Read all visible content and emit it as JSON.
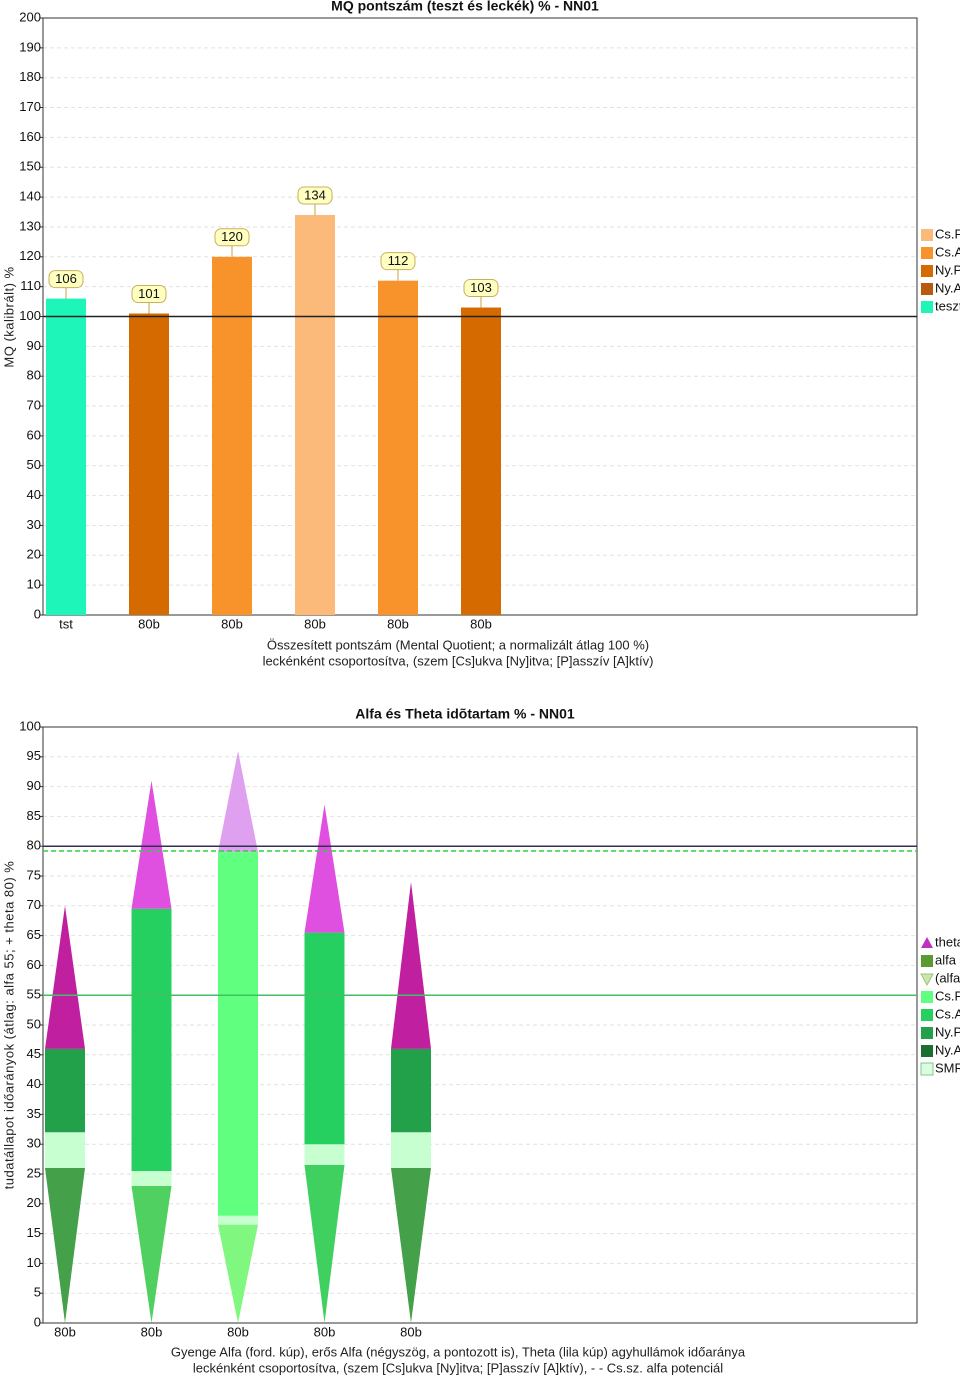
{
  "chart_data": [
    {
      "type": "bar",
      "title": "MQ pontszám (teszt és leckék) % - NN01",
      "y_label": "MQ (kalibrált) %",
      "x_label": [
        "Összesített pontszám (Mental Quotient; a normalizált átlag 100 %)",
        "leckénként csoportosítva, (szem [Cs]ukva [Ny]itva; [P]asszív [A]ktív)"
      ],
      "categories": [
        "tst",
        "80b",
        "80b",
        "80b",
        "80b",
        "80b"
      ],
      "values": [
        106,
        101,
        120,
        134,
        112,
        103
      ],
      "colors": [
        "#1ef5b8",
        "#d46a00",
        "#f7932a",
        "#fbb97a",
        "#f7932a",
        "#d46a00"
      ],
      "ylim": [
        0,
        200
      ],
      "yticks": [
        0,
        10,
        20,
        30,
        40,
        50,
        60,
        70,
        80,
        90,
        100,
        110,
        120,
        130,
        140,
        150,
        160,
        170,
        180,
        190,
        200
      ],
      "grid": true,
      "reference_line": 100,
      "legend_position": "right",
      "legend": [
        {
          "name": "Cs.P",
          "color": "#fbb97a"
        },
        {
          "name": "Cs.A",
          "color": "#f7932a"
        },
        {
          "name": "Ny.P",
          "color": "#d46a00"
        },
        {
          "name": "Ny.A",
          "color": "#b85a10"
        },
        {
          "name": "teszt",
          "color": "#1ef5b8"
        }
      ]
    },
    {
      "type": "stacked-cone",
      "title": "Alfa és Theta idõtartam % - NN01",
      "y_label": "tudatállapot időarányok (átlag: alfa 55; + theta 80)  %",
      "x_label": [
        "Gyenge Alfa (ford. kúp), erős Alfa (négyszög, a pontozott is), Theta (lila kúp) agyhullámok időaránya",
        "leckénként csoportosítva, (szem [Cs]ukva [Ny]itva; [P]asszív [A]ktív), - - Cs.sz. alfa potenciál"
      ],
      "categories": [
        "80b",
        "80b",
        "80b",
        "80b",
        "80b"
      ],
      "ylim": [
        0,
        100
      ],
      "yticks": [
        0,
        5,
        10,
        15,
        20,
        25,
        30,
        35,
        40,
        45,
        50,
        55,
        60,
        65,
        70,
        75,
        80,
        85,
        90,
        95,
        100
      ],
      "grid": true,
      "series": [
        {
          "shape": "cone-down",
          "colors": [
            "#45a04a",
            "#50d060",
            "#80f880",
            "#40d060",
            "#45a04a"
          ],
          "values": [
            26,
            23,
            16.5,
            26.5,
            26
          ]
        },
        {
          "shape": "rect",
          "colors": [
            "#c8ffd0",
            "#c8ffd0",
            "#c8ffd0",
            "#c8ffd0",
            "#c8ffd0"
          ],
          "values": [
            6,
            2.5,
            1.5,
            3.5,
            6
          ]
        },
        {
          "shape": "rect",
          "colors": [
            "#22a04a",
            "#25d060",
            "#60ff80",
            "#25d060",
            "#22a04a"
          ],
          "values": [
            14,
            44,
            61,
            35.5,
            14
          ]
        },
        {
          "shape": "cone-up",
          "colors": [
            "#c020a0",
            "#e050e0",
            "#e0a0f0",
            "#e050e0",
            "#c020a0"
          ],
          "values": [
            24,
            21.5,
            17,
            21.5,
            28
          ]
        }
      ],
      "lines": [
        {
          "value": 80,
          "color": "#303050",
          "dash": false
        },
        {
          "value": 79.2,
          "color": "#30d040",
          "dash": true
        },
        {
          "value": 55,
          "color": "#40c060",
          "dash": false
        }
      ],
      "legend_position": "right",
      "legend": [
        {
          "name": "theta",
          "color": "#c030c0",
          "shape": "triangle-up"
        },
        {
          "name": "alfa",
          "color": "#5a9a30",
          "shape": "square"
        },
        {
          "name": "(alfa)",
          "color": "#c8e8a8",
          "shape": "triangle-down"
        },
        {
          "name": "Cs.P",
          "color": "#60ff80",
          "shape": "square"
        },
        {
          "name": "Cs.A",
          "color": "#25d060",
          "shape": "square"
        },
        {
          "name": "Ny.P",
          "color": "#22a04a",
          "shape": "square"
        },
        {
          "name": "Ny.A",
          "color": "#1a7030",
          "shape": "square"
        },
        {
          "name": "SMR",
          "color": "#d8ffe0",
          "shape": "square"
        }
      ]
    }
  ]
}
